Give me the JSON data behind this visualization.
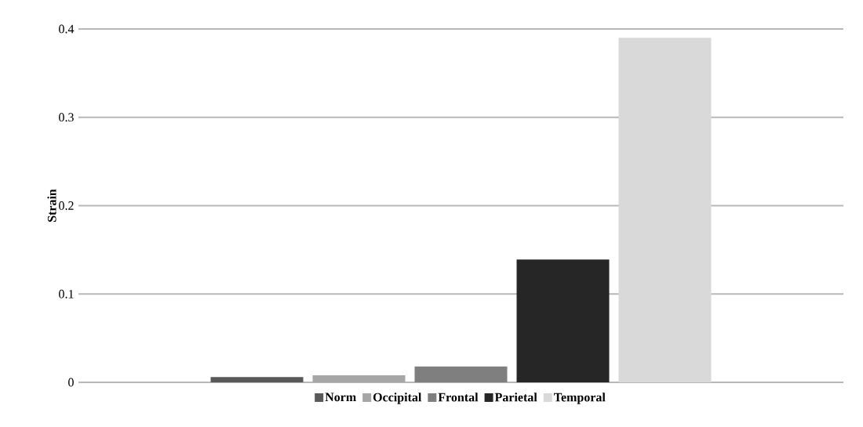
{
  "chart_data": {
    "type": "bar",
    "ylabel": "Strain",
    "categories": [
      null
    ],
    "series": [
      {
        "name": "Norm",
        "color": "#595959",
        "values": [
          0.006
        ]
      },
      {
        "name": "Occipital",
        "color": "#a6a6a6",
        "values": [
          0.008
        ]
      },
      {
        "name": "Frontal",
        "color": "#7f7f7f",
        "values": [
          0.018
        ]
      },
      {
        "name": "Parietal",
        "color": "#262626",
        "values": [
          0.139
        ]
      },
      {
        "name": "Temporal",
        "color": "#d9d9d9",
        "values": [
          0.39
        ]
      }
    ],
    "ylim": [
      0,
      0.4
    ],
    "yticks": [
      0,
      0.1,
      0.2,
      0.3,
      0.4
    ],
    "grid": "y",
    "legend": "bottom"
  }
}
